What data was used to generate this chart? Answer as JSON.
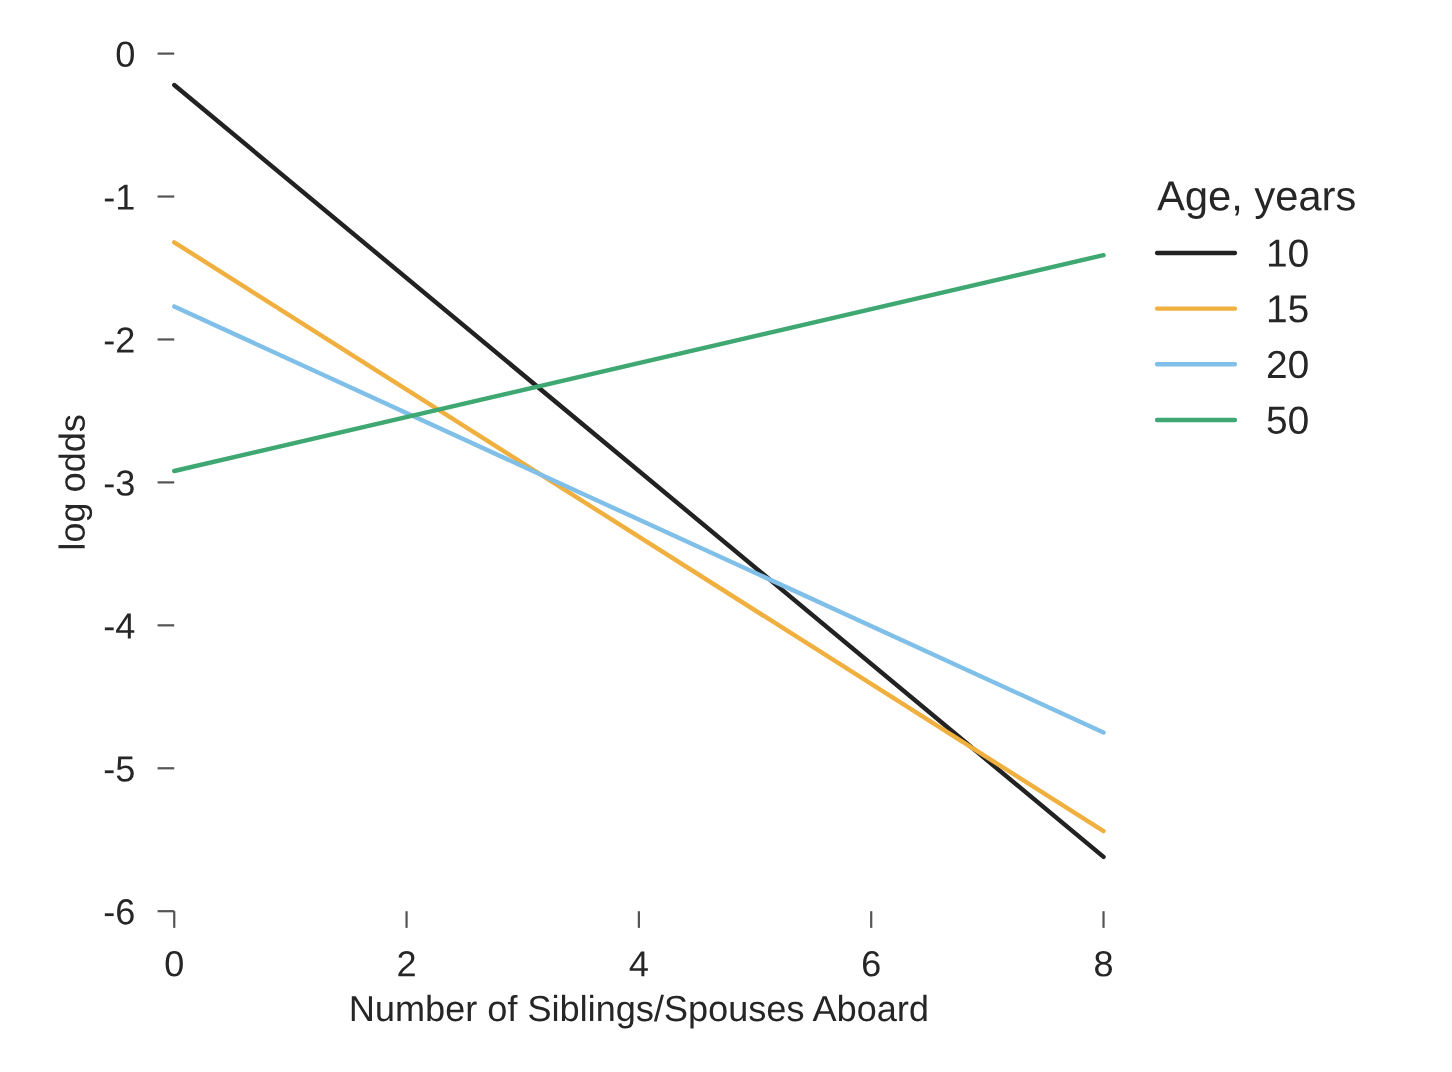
{
  "chart_data": {
    "type": "line",
    "xlabel": "Number of Siblings/Spouses Aboard",
    "ylabel": "log odds",
    "legend_title": "Age, years",
    "x": [
      0,
      8
    ],
    "series": [
      {
        "name": "10",
        "color": "#222222",
        "values": [
          -0.22,
          -5.62
        ]
      },
      {
        "name": "15",
        "color": "#f0b040",
        "values": [
          -1.32,
          -5.44
        ]
      },
      {
        "name": "20",
        "color": "#7fbfe8",
        "values": [
          -1.77,
          -4.75
        ]
      },
      {
        "name": "50",
        "color": "#3fa872",
        "values": [
          -2.92,
          -1.41
        ]
      }
    ],
    "xlim": [
      0,
      8
    ],
    "ylim": [
      -6,
      0
    ],
    "xticks": [
      0,
      2,
      4,
      6,
      8
    ],
    "yticks": [
      -6,
      -5,
      -4,
      -3,
      -2,
      -1,
      0
    ],
    "grid": false,
    "legend": "right",
    "marker": "none",
    "line_style": "solid"
  }
}
